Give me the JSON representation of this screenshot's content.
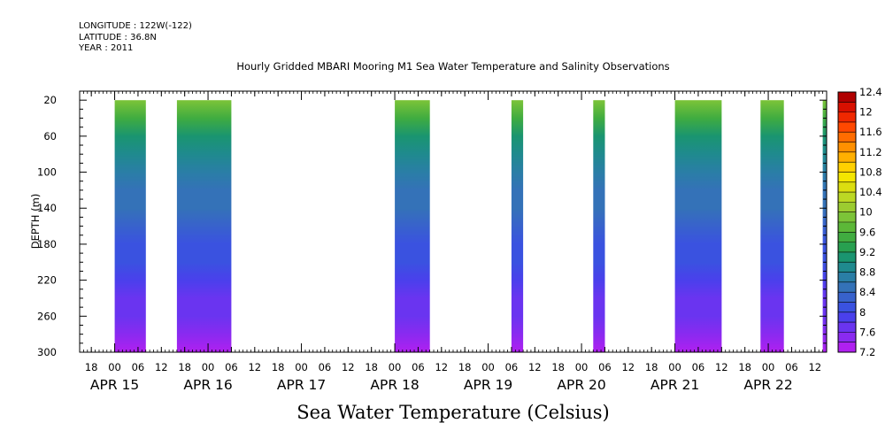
{
  "meta": {
    "longitude": "LONGITUDE : 122W(-122)",
    "latitude": "LATITUDE : 36.8N",
    "year": "YEAR : 2011"
  },
  "title": "Hourly Gridded MBARI Mooring M1 Sea Water Temperature and Salinity Observations",
  "footer": "Sea Water Temperature (Celsius)",
  "chart_data": {
    "type": "heatmap",
    "title": "Hourly Gridded MBARI Mooring M1 Sea Water Temperature and Salinity Observations",
    "xlabel": "",
    "ylabel": "DEPTH (m)",
    "colorbar_label": "Sea Water Temperature (Celsius)",
    "y_axis": {
      "min": 10,
      "max": 300,
      "inverted": true,
      "ticks": [
        20,
        60,
        100,
        140,
        180,
        220,
        260,
        300
      ]
    },
    "x_axis": {
      "start": "2011-04-14T15:00",
      "end": "2011-04-22T15:00",
      "hour_ticks": [
        {
          "t": "2011-04-14T18:00",
          "label": "18"
        },
        {
          "t": "2011-04-15T00:00",
          "label": "00"
        },
        {
          "t": "2011-04-15T06:00",
          "label": "06"
        },
        {
          "t": "2011-04-15T12:00",
          "label": "12"
        },
        {
          "t": "2011-04-15T18:00",
          "label": "18"
        },
        {
          "t": "2011-04-16T00:00",
          "label": "00"
        },
        {
          "t": "2011-04-16T06:00",
          "label": "06"
        },
        {
          "t": "2011-04-16T12:00",
          "label": "12"
        },
        {
          "t": "2011-04-16T18:00",
          "label": "18"
        },
        {
          "t": "2011-04-17T00:00",
          "label": "00"
        },
        {
          "t": "2011-04-17T06:00",
          "label": "06"
        },
        {
          "t": "2011-04-17T12:00",
          "label": "12"
        },
        {
          "t": "2011-04-17T18:00",
          "label": "18"
        },
        {
          "t": "2011-04-18T00:00",
          "label": "00"
        },
        {
          "t": "2011-04-18T06:00",
          "label": "06"
        },
        {
          "t": "2011-04-18T12:00",
          "label": "12"
        },
        {
          "t": "2011-04-18T18:00",
          "label": "18"
        },
        {
          "t": "2011-04-19T00:00",
          "label": "00"
        },
        {
          "t": "2011-04-19T06:00",
          "label": "06"
        },
        {
          "t": "2011-04-19T12:00",
          "label": "12"
        },
        {
          "t": "2011-04-19T18:00",
          "label": "18"
        },
        {
          "t": "2011-04-20T00:00",
          "label": "00"
        },
        {
          "t": "2011-04-20T06:00",
          "label": "06"
        },
        {
          "t": "2011-04-20T12:00",
          "label": "12"
        },
        {
          "t": "2011-04-20T18:00",
          "label": "18"
        },
        {
          "t": "2011-04-21T00:00",
          "label": "00"
        },
        {
          "t": "2011-04-21T06:00",
          "label": "06"
        },
        {
          "t": "2011-04-21T12:00",
          "label": "12"
        },
        {
          "t": "2011-04-21T18:00",
          "label": "18"
        },
        {
          "t": "2011-04-22T00:00",
          "label": "00"
        },
        {
          "t": "2011-04-22T06:00",
          "label": "06"
        },
        {
          "t": "2011-04-22T12:00",
          "label": "12"
        }
      ],
      "day_labels": [
        {
          "t": "2011-04-15T00:00",
          "label": "APR 15"
        },
        {
          "t": "2011-04-16T00:00",
          "label": "APR 16"
        },
        {
          "t": "2011-04-17T00:00",
          "label": "APR 17"
        },
        {
          "t": "2011-04-18T00:00",
          "label": "APR 18"
        },
        {
          "t": "2011-04-19T00:00",
          "label": "APR 19"
        },
        {
          "t": "2011-04-20T00:00",
          "label": "APR 20"
        },
        {
          "t": "2011-04-21T00:00",
          "label": "APR 21"
        },
        {
          "t": "2011-04-22T00:00",
          "label": "APR 22"
        }
      ]
    },
    "data_segments": [
      {
        "start": "2011-04-15T00:00",
        "end": "2011-04-15T08:00"
      },
      {
        "start": "2011-04-15T16:00",
        "end": "2011-04-16T06:00"
      },
      {
        "start": "2011-04-18T00:00",
        "end": "2011-04-18T09:00"
      },
      {
        "start": "2011-04-19T06:00",
        "end": "2011-04-19T09:00"
      },
      {
        "start": "2011-04-20T03:00",
        "end": "2011-04-20T06:00"
      },
      {
        "start": "2011-04-21T00:00",
        "end": "2011-04-21T12:00"
      },
      {
        "start": "2011-04-21T22:00",
        "end": "2011-04-22T04:00"
      },
      {
        "start": "2011-04-22T14:00",
        "end": "2011-04-22T15:00"
      }
    ],
    "temperature_profile": {
      "depth": [
        20,
        40,
        60,
        80,
        100,
        120,
        140,
        160,
        180,
        200,
        220,
        240,
        260,
        280,
        300
      ],
      "temp": [
        9.8,
        9.4,
        9.15,
        8.9,
        8.7,
        8.55,
        8.4,
        8.3,
        8.15,
        8.0,
        7.9,
        7.75,
        7.6,
        7.45,
        7.3
      ]
    },
    "colorbar": {
      "levels": [
        7.2,
        7.4,
        7.6,
        7.8,
        8.0,
        8.2,
        8.4,
        8.6,
        8.8,
        9.0,
        9.2,
        9.4,
        9.6,
        9.8,
        10.0,
        10.2,
        10.4,
        10.6,
        10.8,
        11.0,
        11.2,
        11.4,
        11.6,
        11.8,
        12.0,
        12.2,
        12.4
      ],
      "colors": [
        "#b020f0",
        "#8a2af0",
        "#6a34f0",
        "#4a40ec",
        "#3a52e0",
        "#3862cc",
        "#3472b8",
        "#2a7ea6",
        "#1f8a8e",
        "#1a9570",
        "#28a050",
        "#40ac40",
        "#5cb838",
        "#7cc438",
        "#9ccc30",
        "#bcd824",
        "#dcde10",
        "#f4e600",
        "#ffd000",
        "#ffb000",
        "#ff9000",
        "#ff6c00",
        "#ff4800",
        "#f02800",
        "#d81000",
        "#b00000"
      ],
      "labels": [
        "12.4",
        "12",
        "11.6",
        "11.2",
        "10.8",
        "10.4",
        "10",
        "9.6",
        "9.2",
        "8.8",
        "8.4",
        "8",
        "7.6",
        "7.2"
      ]
    }
  }
}
